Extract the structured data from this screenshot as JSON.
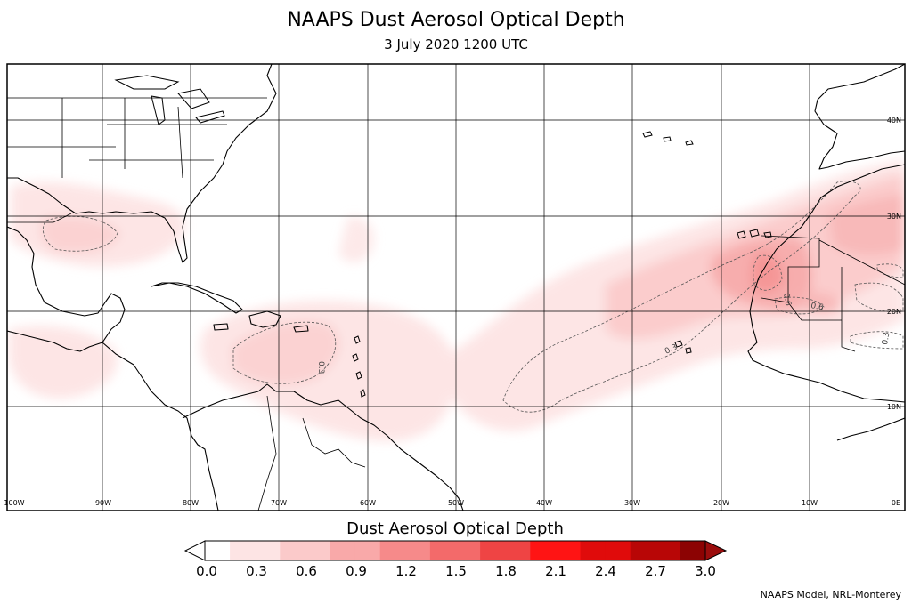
{
  "header": {
    "title": "NAAPS Dust Aerosol Optical Depth",
    "subtitle": "3 July 2020 1200 UTC"
  },
  "colorbar": {
    "title": "Dust Aerosol Optical Depth",
    "ticks": [
      "0.0",
      "0.3",
      "0.6",
      "0.9",
      "1.2",
      "1.5",
      "1.8",
      "2.1",
      "2.4",
      "2.7",
      "3.0"
    ],
    "colors": [
      "#ffffff",
      "#fde4e4",
      "#fbcaca",
      "#f9a9a9",
      "#f68a8a",
      "#f36a6a",
      "#ef4444",
      "#ff1414",
      "#e00b0b",
      "#b80606",
      "#8c0303"
    ],
    "under_color": "#ffffff",
    "over_color": "#9b0d0d"
  },
  "map": {
    "lon_labels": [
      "100W",
      "90W",
      "80W",
      "70W",
      "60W",
      "50W",
      "40W",
      "30W",
      "20W",
      "10W",
      "0E"
    ],
    "lat_labels": [
      "40N",
      "30N",
      "20N",
      "10N"
    ],
    "contour_labels": [
      "0.3",
      "0.3",
      "0.6",
      "0.6",
      "0.3"
    ]
  },
  "credit": "NAAPS Model, NRL-Monterey"
}
